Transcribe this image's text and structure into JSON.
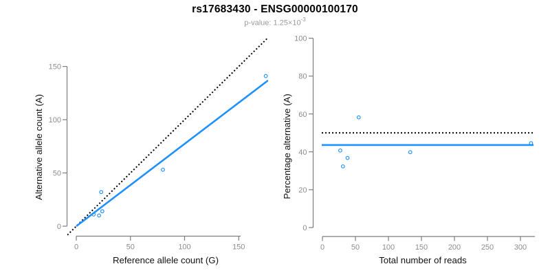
{
  "header": {
    "title": "rs17683430 - ENSG00000100170",
    "subtitle_base": "p-value: 1.25×10",
    "subtitle_exponent": "-3"
  },
  "colors": {
    "fit_blue": "#1E90FF",
    "reference_black": "#000000",
    "axis_line_gray": "#7d7d7d",
    "tick_label_gray": "#8c8c8c",
    "axis_title_black": "#111111"
  },
  "chart_data": [
    {
      "id": "allele-counts",
      "type": "scatter",
      "xlabel": "Reference allele count (G)",
      "ylabel": "Alternative allele count (A)",
      "x_ticks": [
        0,
        50,
        100,
        150
      ],
      "y_ticks": [
        0,
        50,
        100,
        150
      ],
      "xlim": [
        0,
        176
      ],
      "ylim": [
        0,
        177
      ],
      "grid": false,
      "points": [
        [
          175,
          141
        ],
        [
          80,
          53
        ],
        [
          23,
          32
        ],
        [
          24,
          14
        ],
        [
          21,
          10
        ],
        [
          16,
          11
        ]
      ],
      "lines": [
        {
          "name": "identity-line",
          "kind": "abline",
          "slope": 1,
          "intercept": 0,
          "style": "dotted",
          "color_key": "reference_black"
        },
        {
          "name": "fit-line",
          "kind": "abline",
          "slope": 0.773,
          "intercept": 0,
          "x_min": 0,
          "style": "solid",
          "color_key": "fit_blue"
        }
      ]
    },
    {
      "id": "percentage-alternative",
      "type": "scatter",
      "xlabel": "Total number of reads",
      "ylabel": "Percentage alternative (A)",
      "x_ticks": [
        0,
        50,
        100,
        150,
        200,
        250,
        300
      ],
      "y_ticks": [
        0,
        20,
        40,
        60,
        80,
        100
      ],
      "xlim": [
        0,
        320
      ],
      "ylim": [
        0,
        100
      ],
      "grid": false,
      "points": [
        [
          316,
          44.6
        ],
        [
          133,
          39.8
        ],
        [
          55,
          58.2
        ],
        [
          38,
          36.8
        ],
        [
          31,
          32.3
        ],
        [
          27,
          40.7
        ]
      ],
      "lines": [
        {
          "name": "fifty-percent-line",
          "kind": "hline",
          "y": 50,
          "style": "dotted",
          "color_key": "reference_black"
        },
        {
          "name": "mean-percentage-line",
          "kind": "hline",
          "y": 43.6,
          "style": "solid",
          "color_key": "fit_blue"
        }
      ]
    }
  ]
}
